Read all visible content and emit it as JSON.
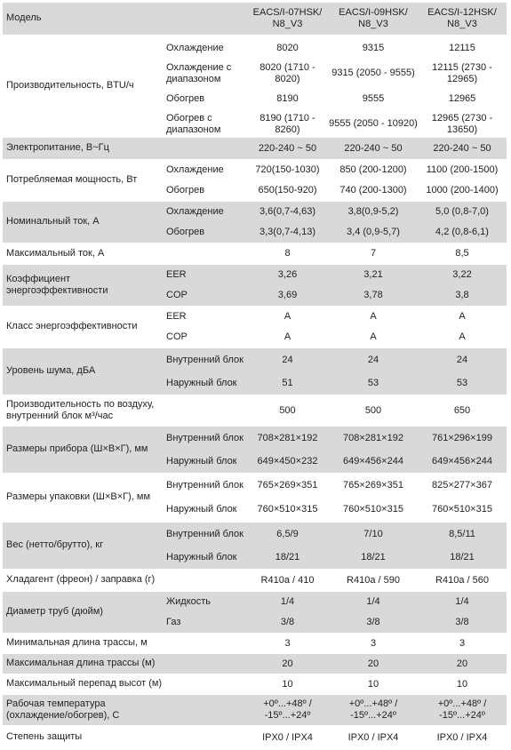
{
  "header": {
    "label": "Модель",
    "models": [
      "EACS/I-07HSK/ N8_V3",
      "EACS/I-09HSK/ N8_V3",
      "EACS/I-12HSK/ N8_V3"
    ]
  },
  "groups": [
    {
      "label": "Производительность, BTU/ч",
      "shade": false,
      "height": 114,
      "rows": [
        {
          "sub": "Охлаждение",
          "v": [
            "8020",
            "9315",
            "12115"
          ]
        },
        {
          "sub": "Охлаждение с диапазоном",
          "v": [
            "8020 (1710 - 8020)",
            "9315 (2050 - 9555)",
            "12115 (2730 - 12965)"
          ]
        },
        {
          "sub": "Обогрев",
          "v": [
            "8190",
            "9555",
            "12965"
          ]
        },
        {
          "sub": "Обогрев с диапазоном",
          "v": [
            "8190 (1710 - 8260)",
            "9555 (2050 - 10920)",
            "12965 (2730 - 13650)"
          ]
        }
      ]
    },
    {
      "label": "Электропитание, В~Гц",
      "shade": true,
      "height": 24,
      "rows": [
        {
          "sub": "",
          "v": [
            "220-240 ~ 50",
            "220-240 ~ 50",
            "220-240 ~ 50"
          ]
        }
      ]
    },
    {
      "label": "Потребляемая мощность, Вт",
      "shade": false,
      "height": 46,
      "rows": [
        {
          "sub": "Охлаждение",
          "v": [
            "720(150-1030)",
            "850 (200-1200)",
            "1100 (200-1500)"
          ]
        },
        {
          "sub": "Обогрев",
          "v": [
            "650(150-920)",
            "740 (200-1300)",
            "1000 (200-1400)"
          ]
        }
      ]
    },
    {
      "label": "Номинальный ток, А",
      "shade": true,
      "height": 46,
      "rows": [
        {
          "sub": "Охлаждение",
          "v": [
            "3,6(0,7-4,63)",
            "3,8(0,9-5,2)",
            "5,0 (0,8-7,0)"
          ]
        },
        {
          "sub": "Обогрев",
          "v": [
            "3,3(0,7-4,13)",
            "3,4 (0,9-5,7)",
            "4,2 (0,8-6,1)"
          ]
        }
      ]
    },
    {
      "label": "Максимальный ток, А",
      "shade": false,
      "height": 23,
      "rows": [
        {
          "sub": "",
          "v": [
            "8",
            "7",
            "8,5"
          ]
        }
      ]
    },
    {
      "label": "Коэффициент энергоэффективности",
      "shade": true,
      "height": 46,
      "rows": [
        {
          "sub": "EER",
          "v": [
            "3,26",
            "3,21",
            "3,22"
          ]
        },
        {
          "sub": "COP",
          "v": [
            "3,69",
            "3,78",
            "3,8"
          ]
        }
      ]
    },
    {
      "label": "Класс энергоэффективности",
      "shade": false,
      "height": 46,
      "rows": [
        {
          "sub": "EER",
          "v": [
            "A",
            "A",
            "A"
          ]
        },
        {
          "sub": "COP",
          "v": [
            "A",
            "A",
            "A"
          ]
        }
      ]
    },
    {
      "label": "Уровень шума, дБА",
      "shade": true,
      "height": 52,
      "rows": [
        {
          "sub": "Внутренний блок",
          "v": [
            "24",
            "24",
            "24"
          ]
        },
        {
          "sub": "Наружный блок",
          "v": [
            "51",
            "53",
            "53"
          ]
        }
      ]
    },
    {
      "label": "Производительность по воздуху, внутренний блок м³/час",
      "shade": false,
      "height": 34,
      "rows": [
        {
          "sub": "",
          "v": [
            "500",
            "500",
            "650"
          ]
        }
      ]
    },
    {
      "label": "Размеры прибора (Ш×В×Г), мм",
      "shade": true,
      "height": 52,
      "rows": [
        {
          "sub": "Внутренний блок",
          "v": [
            "708×281×192",
            "708×281×192",
            "761×296×199"
          ]
        },
        {
          "sub": "Наружный блок",
          "v": [
            "649×450×232",
            "649×456×244",
            "649×456×244"
          ]
        }
      ]
    },
    {
      "label": "Размеры упаковки (Ш×В×Г), мм",
      "shade": false,
      "height": 54,
      "rows": [
        {
          "sub": "Внутренний блок",
          "v": [
            "765×269×351",
            "765×269×351",
            "825×277×367"
          ]
        },
        {
          "sub": "Наружный блок",
          "v": [
            "760×510×315",
            "760×510×315",
            "760×510×315"
          ]
        }
      ]
    },
    {
      "label": "Вес (нетто/брутто), кг",
      "shade": true,
      "height": 52,
      "rows": [
        {
          "sub": "Внутренний блок",
          "v": [
            "6,5/9",
            "7/10",
            "8,5/11"
          ]
        },
        {
          "sub": "Наружный блок",
          "v": [
            "18/21",
            "18/21",
            "18/21"
          ]
        }
      ]
    },
    {
      "label": "Хладагент (фреон) / заправка (г)",
      "shade": false,
      "height": 24,
      "rows": [
        {
          "sub": "",
          "v": [
            "R410a / 410",
            "R410a / 590",
            "R410a / 560"
          ]
        }
      ]
    },
    {
      "label": "Диаметр труб (дюйм)",
      "shade": true,
      "height": 46,
      "rows": [
        {
          "sub": "Жидкость",
          "v": [
            "1/4",
            "1/4",
            "1/4"
          ]
        },
        {
          "sub": "Газ",
          "v": [
            "3/8",
            "3/8",
            "3/8"
          ]
        }
      ]
    },
    {
      "label": "Минимальная длина трассы, м",
      "shade": false,
      "height": 22,
      "rows": [
        {
          "sub": "",
          "v": [
            "3",
            "3",
            "3"
          ]
        }
      ]
    },
    {
      "label": "Максимальная длина трассы (м)",
      "shade": true,
      "height": 22,
      "rows": [
        {
          "sub": "",
          "v": [
            "20",
            "20",
            "20"
          ]
        }
      ]
    },
    {
      "label": "Максимальный перепад высот (м)",
      "shade": false,
      "height": 22,
      "rows": [
        {
          "sub": "",
          "v": [
            "10",
            "10",
            "10"
          ]
        }
      ]
    },
    {
      "label": "Рабочая температура (охлаждение/обогрев), С",
      "shade": true,
      "height": 34,
      "rows": [
        {
          "sub": "",
          "v": [
            "+0º...+48º / -15º...+24º",
            "+0º...+48º / -15º...+24º",
            "+0º...+48º / -15º...+24º"
          ]
        }
      ]
    },
    {
      "label": "Степень защиты",
      "shade": false,
      "height": 26,
      "rows": [
        {
          "sub": "",
          "v": [
            "IPX0 / IPX4",
            "IPX0 / IPX4",
            "IPX0 / IPX4"
          ]
        }
      ]
    }
  ]
}
